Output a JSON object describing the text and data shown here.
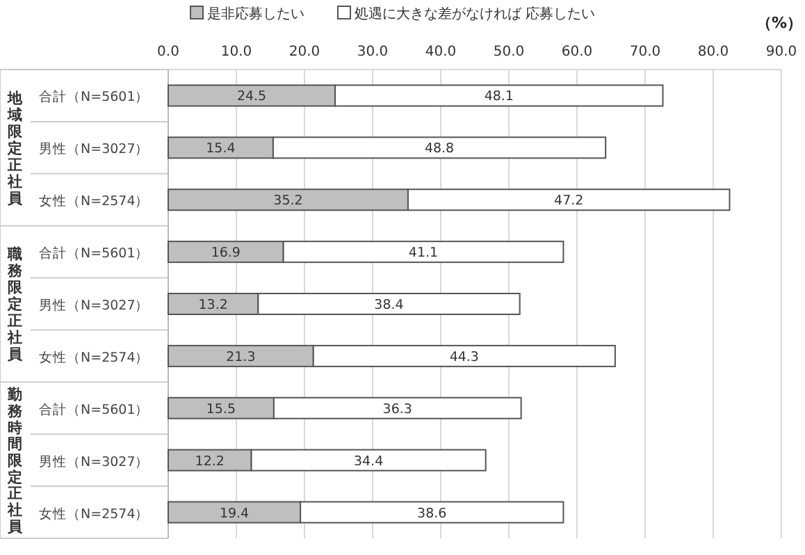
{
  "chart_data": {
    "type": "bar",
    "orientation": "horizontal",
    "stacked": true,
    "categories": [
      "合計（N=5601）",
      "男性（N=3027）",
      "女性（N=2574）",
      "合計（N=5601）",
      "男性（N=3027）",
      "女性（N=2574）",
      "合計（N=5601）",
      "男性（N=3027）",
      "女性（N=2574）"
    ],
    "series": [
      {
        "name": "是非応募したい",
        "color": "#bfbfbf",
        "values": [
          24.5,
          15.4,
          35.2,
          16.9,
          13.2,
          21.3,
          15.5,
          12.2,
          19.4
        ]
      },
      {
        "name": "処遇に大きな差がなければ 応募したい",
        "color": "#ffffff",
        "values": [
          48.1,
          48.8,
          47.2,
          41.1,
          38.4,
          44.3,
          36.3,
          34.4,
          38.6
        ]
      }
    ],
    "xlabel": "（%）",
    "xlim": [
      0,
      90
    ],
    "xticks": [
      {
        "value": 0,
        "label": "0.0"
      },
      {
        "value": 10,
        "label": "10.0"
      },
      {
        "value": 20,
        "label": "20.0"
      },
      {
        "value": 30,
        "label": "30.0"
      },
      {
        "value": 40,
        "label": "40.0"
      },
      {
        "value": 50,
        "label": "50.0"
      },
      {
        "value": 60,
        "label": "60.0"
      },
      {
        "value": 70,
        "label": "70.0"
      },
      {
        "value": 80,
        "label": "80.0"
      },
      {
        "value": 90,
        "label": "90.0"
      }
    ],
    "annotations": [
      "地域限定正社員",
      "職務限定正社員",
      "勤務時間限定正社員"
    ],
    "grid": "x",
    "legend": "top",
    "data_labels": true
  }
}
